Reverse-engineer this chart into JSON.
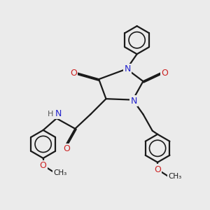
{
  "bg_color": "#ebebeb",
  "bond_color": "#1a1a1a",
  "N_color": "#2222cc",
  "O_color": "#cc2222",
  "H_color": "#555555",
  "line_width": 1.6,
  "fig_w": 3.0,
  "fig_h": 3.0,
  "dpi": 100,
  "xlim": [
    0,
    10
  ],
  "ylim": [
    0,
    10
  ]
}
